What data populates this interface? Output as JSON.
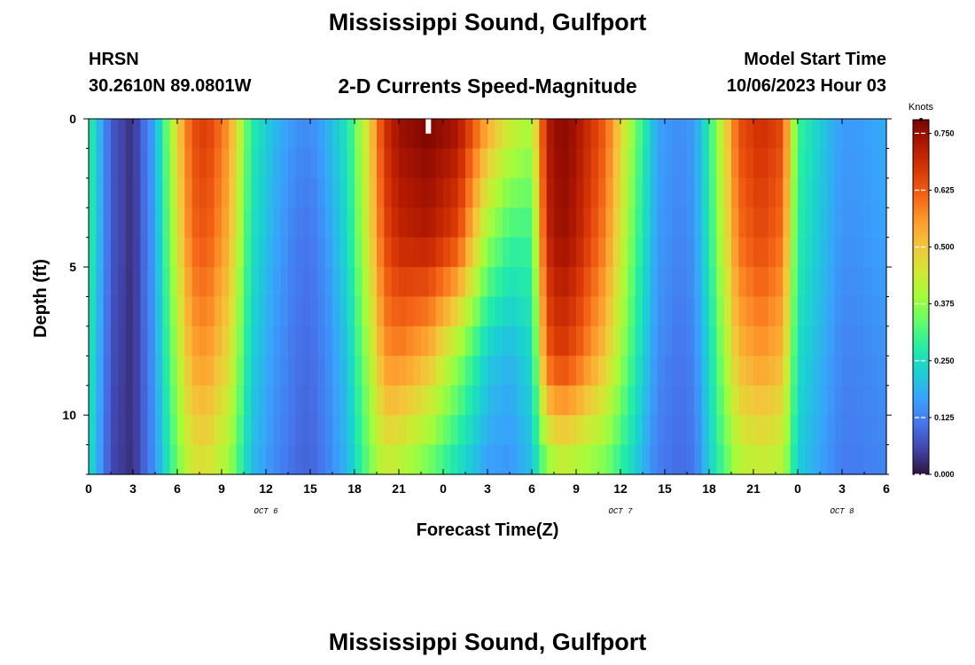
{
  "page": {
    "title": "Mississippi Sound, Gulfport",
    "title_repeat": "Mississippi Sound, Gulfport",
    "station": "HRSN",
    "coords": "30.2610N  89.0801W",
    "subtitle": "2-D Currents Speed-Magnitude",
    "model_start_label": "Model Start Time",
    "model_start_value": "10/06/2023 Hour 03"
  },
  "chart_data": {
    "type": "heatmap",
    "xlabel": "Forecast Time(Z)",
    "ylabel": "Depth (ft)",
    "x_range_hours": [
      0,
      54
    ],
    "y_range_ft": [
      0,
      12.0
    ],
    "y_inverted": true,
    "x_tick_labels": [
      "0",
      "3",
      "6",
      "9",
      "12",
      "15",
      "18",
      "21",
      "0",
      "3",
      "6",
      "9",
      "12",
      "15",
      "18",
      "21",
      "0",
      "3",
      "6"
    ],
    "y_ticks": [
      0,
      5,
      10
    ],
    "date_labels": [
      {
        "text": "OCT 6",
        "hour": 12
      },
      {
        "text": "OCT 7",
        "hour": 36
      },
      {
        "text": "OCT 8",
        "hour": 51
      }
    ],
    "colorbar": {
      "unit": "Knots",
      "min": 0.0,
      "max": 0.78,
      "ticks": [
        "0.000",
        "0.125",
        "0.250",
        "0.375",
        "0.500",
        "0.625",
        "0.750"
      ],
      "tick_values": [
        0,
        0.125,
        0.25,
        0.375,
        0.5,
        0.625,
        0.75
      ],
      "colormap": [
        "#30123b",
        "#4145ab",
        "#4675ed",
        "#39a2fc",
        "#1bcfd4",
        "#24eca6",
        "#61fc6c",
        "#a4fc3b",
        "#d1e834",
        "#f3c63a",
        "#fe9b2d",
        "#f36315",
        "#d93806",
        "#b11901",
        "#7a0402"
      ]
    },
    "time_anchors_hours": [
      0,
      1.5,
      3,
      4.5,
      6,
      7,
      8,
      9.5,
      11,
      12.5,
      14,
      15,
      16,
      17.5,
      19,
      20,
      21,
      23,
      25,
      27,
      28.5,
      30,
      31,
      32,
      33,
      35,
      37,
      38.5,
      40,
      41,
      42,
      44,
      45.5,
      47,
      48,
      50,
      51,
      52,
      54
    ],
    "depth_levels_ft": [
      0,
      4,
      8,
      12
    ],
    "speed_knots": [
      [
        0.3,
        0.08,
        0.03,
        0.18,
        0.48,
        0.64,
        0.67,
        0.56,
        0.28,
        0.2,
        0.15,
        0.14,
        0.18,
        0.26,
        0.48,
        0.68,
        0.75,
        0.78,
        0.74,
        0.55,
        0.45,
        0.4,
        0.72,
        0.77,
        0.74,
        0.62,
        0.35,
        0.17,
        0.14,
        0.16,
        0.28,
        0.64,
        0.69,
        0.65,
        0.3,
        0.2,
        0.16,
        0.16,
        0.18
      ],
      [
        0.3,
        0.08,
        0.03,
        0.17,
        0.45,
        0.61,
        0.63,
        0.53,
        0.26,
        0.18,
        0.12,
        0.11,
        0.15,
        0.24,
        0.46,
        0.64,
        0.7,
        0.72,
        0.65,
        0.38,
        0.3,
        0.3,
        0.7,
        0.75,
        0.72,
        0.58,
        0.32,
        0.16,
        0.13,
        0.15,
        0.27,
        0.6,
        0.65,
        0.6,
        0.28,
        0.19,
        0.15,
        0.15,
        0.17
      ],
      [
        0.28,
        0.07,
        0.03,
        0.16,
        0.4,
        0.54,
        0.56,
        0.47,
        0.23,
        0.16,
        0.11,
        0.1,
        0.13,
        0.21,
        0.4,
        0.56,
        0.58,
        0.52,
        0.38,
        0.22,
        0.19,
        0.24,
        0.62,
        0.67,
        0.63,
        0.5,
        0.28,
        0.14,
        0.11,
        0.13,
        0.24,
        0.52,
        0.56,
        0.52,
        0.25,
        0.17,
        0.13,
        0.13,
        0.15
      ],
      [
        0.26,
        0.06,
        0.03,
        0.15,
        0.34,
        0.44,
        0.45,
        0.38,
        0.2,
        0.14,
        0.1,
        0.09,
        0.12,
        0.19,
        0.34,
        0.42,
        0.4,
        0.33,
        0.24,
        0.16,
        0.15,
        0.2,
        0.34,
        0.4,
        0.38,
        0.34,
        0.22,
        0.12,
        0.1,
        0.11,
        0.22,
        0.4,
        0.42,
        0.4,
        0.22,
        0.15,
        0.12,
        0.12,
        0.13
      ]
    ],
    "marker": {
      "hour": 23,
      "depth_ft": [
        0,
        0.5
      ]
    }
  }
}
